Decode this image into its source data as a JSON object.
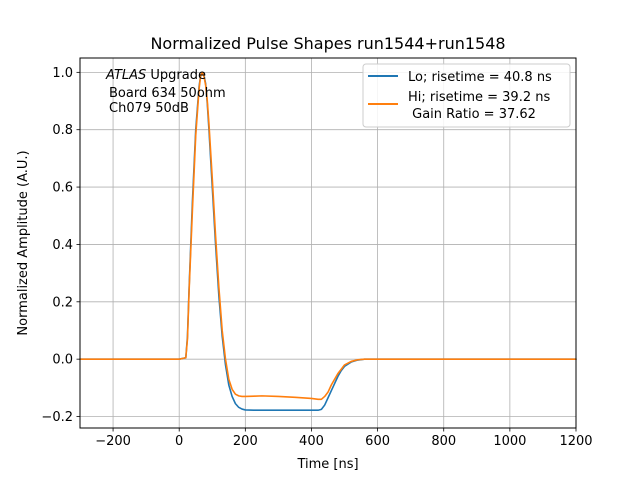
{
  "chart_data": {
    "type": "line",
    "title": "Normalized Pulse Shapes run1544+run1548",
    "xlabel": "Time [ns]",
    "ylabel": "Normalized Amplitude (A.U.)",
    "xlim": [
      -300,
      1200
    ],
    "ylim": [
      -0.24,
      1.05
    ],
    "xticks": [
      -200,
      0,
      200,
      400,
      600,
      800,
      1000,
      1200
    ],
    "xtick_labels": [
      "−200",
      "0",
      "200",
      "400",
      "600",
      "800",
      "1000",
      "1200"
    ],
    "yticks": [
      -0.2,
      0.0,
      0.2,
      0.4,
      0.6,
      0.8,
      1.0
    ],
    "ytick_labels": [
      "−0.2",
      "0.0",
      "0.2",
      "0.4",
      "0.6",
      "0.8",
      "1.0"
    ],
    "grid": true,
    "legend_position": "top-right",
    "annotation": {
      "atlas": "ATLAS",
      "upgrade": " Upgrade",
      "line2": "Board 634 50ohm",
      "line3": "Ch079 50dB"
    },
    "series": [
      {
        "name": "Lo; risetime = 40.8 ns",
        "color": "#1f77b4",
        "x": [
          -300,
          -200,
          -100,
          0,
          20,
          25,
          30,
          40,
          50,
          60,
          65,
          70,
          75,
          80,
          85,
          90,
          100,
          110,
          120,
          130,
          140,
          150,
          160,
          170,
          180,
          190,
          200,
          225,
          250,
          300,
          350,
          400,
          420,
          430,
          440,
          450,
          460,
          470,
          480,
          490,
          500,
          520,
          540,
          560,
          580,
          600,
          700,
          800,
          900,
          1000,
          1100,
          1200
        ],
        "y": [
          0.0,
          0.0,
          0.0,
          0.0,
          0.005,
          0.08,
          0.25,
          0.55,
          0.8,
          0.95,
          0.99,
          1.0,
          0.99,
          0.96,
          0.89,
          0.8,
          0.6,
          0.4,
          0.22,
          0.08,
          -0.02,
          -0.09,
          -0.13,
          -0.155,
          -0.168,
          -0.174,
          -0.177,
          -0.178,
          -0.178,
          -0.178,
          -0.178,
          -0.178,
          -0.178,
          -0.175,
          -0.16,
          -0.135,
          -0.11,
          -0.085,
          -0.06,
          -0.04,
          -0.025,
          -0.01,
          -0.003,
          0.0,
          0.0,
          0.0,
          0.0,
          0.0,
          0.0,
          0.0,
          0.0,
          0.0
        ]
      },
      {
        "name": "Hi; risetime = 39.2 ns",
        "name_line2": " Gain Ratio = 37.62",
        "color": "#ff7f0e",
        "x": [
          -300,
          -200,
          -100,
          0,
          20,
          25,
          30,
          40,
          50,
          60,
          65,
          70,
          75,
          80,
          85,
          90,
          100,
          110,
          120,
          130,
          140,
          150,
          160,
          170,
          180,
          190,
          200,
          225,
          250,
          300,
          350,
          400,
          420,
          430,
          440,
          450,
          460,
          470,
          480,
          490,
          500,
          520,
          540,
          560,
          580,
          600,
          700,
          800,
          900,
          1000,
          1100,
          1200
        ],
        "y": [
          0.0,
          0.0,
          0.0,
          0.0,
          0.005,
          0.07,
          0.24,
          0.52,
          0.78,
          0.94,
          0.99,
          1.0,
          0.985,
          0.955,
          0.9,
          0.82,
          0.63,
          0.43,
          0.25,
          0.1,
          0.0,
          -0.07,
          -0.105,
          -0.122,
          -0.128,
          -0.13,
          -0.13,
          -0.129,
          -0.128,
          -0.13,
          -0.133,
          -0.137,
          -0.14,
          -0.14,
          -0.13,
          -0.115,
          -0.09,
          -0.07,
          -0.05,
          -0.035,
          -0.02,
          -0.008,
          -0.002,
          0.0,
          0.0,
          0.0,
          0.0,
          0.0,
          0.0,
          0.0,
          0.0,
          0.0
        ]
      }
    ]
  }
}
